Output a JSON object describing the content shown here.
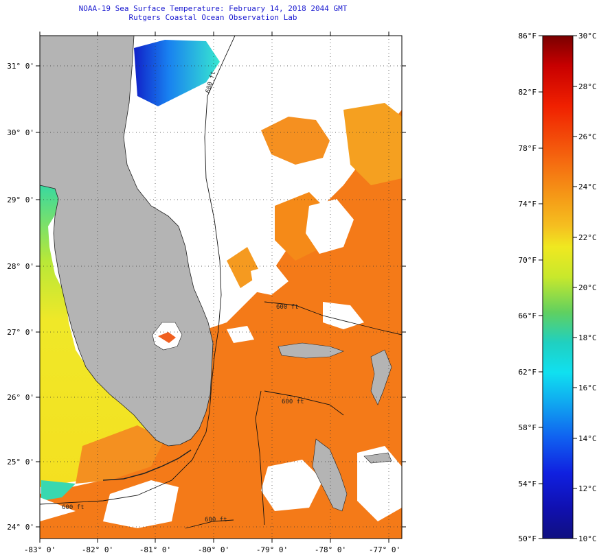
{
  "title": {
    "line1": "NOAA-19 Sea Surface Temperature:  February 14, 2018 2044 GMT",
    "line2": "Rutgers Coastal Ocean Observation Lab"
  },
  "map": {
    "lat_labels": [
      "31° 0'",
      "30° 0'",
      "29° 0'",
      "28° 0'",
      "27° 0'",
      "26° 0'",
      "25° 0'",
      "24° 0'"
    ],
    "lon_labels": [
      "-83° 0'",
      "-82° 0'",
      "-81° 0'",
      "-80° 0'",
      "-79° 0'",
      "-78° 0'",
      "-77° 0'"
    ],
    "isobath_label": "600 ft",
    "colors": {
      "land": "#b4b4b4",
      "cloud": "#ffffff",
      "warm_ocean": "#f47a18",
      "gulf": "#f4dc28"
    }
  },
  "colorbar": {
    "f_labels": [
      "86°F",
      "82°F",
      "78°F",
      "74°F",
      "70°F",
      "66°F",
      "62°F",
      "58°F",
      "54°F",
      "50°F"
    ],
    "c_labels": [
      "30°C",
      "28°C",
      "26°C",
      "24°C",
      "22°C",
      "20°C",
      "18°C",
      "16°C",
      "14°C",
      "12°C",
      "10°C"
    ]
  }
}
